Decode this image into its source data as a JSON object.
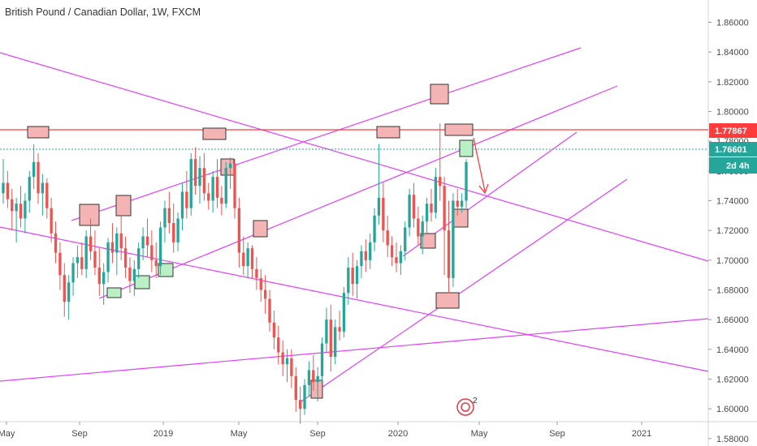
{
  "header": {
    "title": "British Pound / Canadian Dollar, 1W, FXCM"
  },
  "colors": {
    "up": "#26a69a",
    "down": "#ef5350",
    "trendline": "#e040fb",
    "resistance": "#ff3b3b",
    "current_price": "#26a69a",
    "box_red": "#f4b4b4",
    "box_green": "#b9f0c6",
    "axis_bg": "#ffffff"
  },
  "chart_data": {
    "type": "candlestick",
    "symbol": "GBPCAD",
    "timeframe": "1W",
    "ylim": [
      1.575,
      1.875
    ],
    "y_ticks": [
      "1.86000",
      "1.84000",
      "1.82000",
      "1.80000",
      "1.78000",
      "1.76000",
      "1.74000",
      "1.72000",
      "1.70000",
      "1.68000",
      "1.66000",
      "1.64000",
      "1.62000",
      "1.60000",
      "1.58000"
    ],
    "x_ticks": [
      "May",
      "Sep",
      "2019",
      "May",
      "Sep",
      "2020",
      "May",
      "Sep",
      "2021"
    ],
    "resistance_level": {
      "value": 1.77867,
      "label": "1.77867"
    },
    "current_price": {
      "value": 1.76601,
      "label": "1.76601",
      "countdown": "2d 4h"
    },
    "annotation_badge": "2",
    "candles": [
      [
        1.745,
        1.768,
        1.738,
        1.752
      ],
      [
        1.752,
        1.76,
        1.735,
        1.741
      ],
      [
        1.741,
        1.748,
        1.72,
        1.733
      ],
      [
        1.733,
        1.742,
        1.712,
        1.738
      ],
      [
        1.738,
        1.75,
        1.722,
        1.728
      ],
      [
        1.728,
        1.745,
        1.718,
        1.74
      ],
      [
        1.74,
        1.76,
        1.732,
        1.756
      ],
      [
        1.756,
        1.778,
        1.748,
        1.766
      ],
      [
        1.766,
        1.772,
        1.738,
        1.745
      ],
      [
        1.745,
        1.758,
        1.73,
        1.752
      ],
      [
        1.752,
        1.755,
        1.728,
        1.735
      ],
      [
        1.735,
        1.742,
        1.712,
        1.718
      ],
      [
        1.718,
        1.726,
        1.698,
        1.705
      ],
      [
        1.705,
        1.712,
        1.68,
        1.69
      ],
      [
        1.69,
        1.698,
        1.662,
        1.672
      ],
      [
        1.672,
        1.69,
        1.66,
        1.685
      ],
      [
        1.685,
        1.702,
        1.676,
        1.698
      ],
      [
        1.698,
        1.71,
        1.688,
        1.702
      ],
      [
        1.702,
        1.712,
        1.69,
        1.694
      ],
      [
        1.694,
        1.72,
        1.688,
        1.716
      ],
      [
        1.716,
        1.728,
        1.7,
        1.706
      ],
      [
        1.706,
        1.72,
        1.69,
        1.695
      ],
      [
        1.695,
        1.708,
        1.676,
        1.684
      ],
      [
        1.684,
        1.698,
        1.67,
        1.692
      ],
      [
        1.692,
        1.715,
        1.685,
        1.712
      ],
      [
        1.712,
        1.725,
        1.698,
        1.705
      ],
      [
        1.705,
        1.722,
        1.69,
        1.718
      ],
      [
        1.718,
        1.73,
        1.7,
        1.708
      ],
      [
        1.708,
        1.716,
        1.688,
        1.695
      ],
      [
        1.695,
        1.702,
        1.678,
        1.686
      ],
      [
        1.686,
        1.7,
        1.676,
        1.694
      ],
      [
        1.694,
        1.712,
        1.688,
        1.708
      ],
      [
        1.708,
        1.722,
        1.7,
        1.716
      ],
      [
        1.716,
        1.728,
        1.702,
        1.71
      ],
      [
        1.71,
        1.72,
        1.692,
        1.7
      ],
      [
        1.7,
        1.712,
        1.688,
        1.696
      ],
      [
        1.696,
        1.726,
        1.69,
        1.722
      ],
      [
        1.722,
        1.74,
        1.712,
        1.735
      ],
      [
        1.735,
        1.746,
        1.718,
        1.725
      ],
      [
        1.725,
        1.738,
        1.705,
        1.712
      ],
      [
        1.712,
        1.732,
        1.706,
        1.728
      ],
      [
        1.728,
        1.752,
        1.72,
        1.746
      ],
      [
        1.746,
        1.76,
        1.728,
        1.735
      ],
      [
        1.735,
        1.772,
        1.73,
        1.768
      ],
      [
        1.768,
        1.776,
        1.744,
        1.75
      ],
      [
        1.75,
        1.77,
        1.738,
        1.762
      ],
      [
        1.762,
        1.772,
        1.74,
        1.745
      ],
      [
        1.745,
        1.752,
        1.734,
        1.74
      ],
      [
        1.74,
        1.76,
        1.732,
        1.756
      ],
      [
        1.756,
        1.768,
        1.735,
        1.742
      ],
      [
        1.742,
        1.75,
        1.73,
        1.738
      ],
      [
        1.738,
        1.766,
        1.735,
        1.762
      ],
      [
        1.762,
        1.769,
        1.748,
        1.765
      ],
      [
        1.765,
        1.768,
        1.728,
        1.735
      ],
      [
        1.735,
        1.742,
        1.695,
        1.705
      ],
      [
        1.705,
        1.716,
        1.69,
        1.696
      ],
      [
        1.696,
        1.712,
        1.688,
        1.708
      ],
      [
        1.708,
        1.71,
        1.688,
        1.694
      ],
      [
        1.694,
        1.702,
        1.68,
        1.688
      ],
      [
        1.688,
        1.694,
        1.672,
        1.68
      ],
      [
        1.68,
        1.69,
        1.664,
        1.674
      ],
      [
        1.674,
        1.68,
        1.652,
        1.658
      ],
      [
        1.658,
        1.666,
        1.64,
        1.648
      ],
      [
        1.648,
        1.656,
        1.63,
        1.638
      ],
      [
        1.638,
        1.646,
        1.622,
        1.63
      ],
      [
        1.63,
        1.64,
        1.618,
        1.634
      ],
      [
        1.634,
        1.64,
        1.614,
        1.622
      ],
      [
        1.622,
        1.628,
        1.598,
        1.606
      ],
      [
        1.606,
        1.615,
        1.59,
        1.6
      ],
      [
        1.6,
        1.62,
        1.596,
        1.616
      ],
      [
        1.616,
        1.632,
        1.608,
        1.626
      ],
      [
        1.626,
        1.636,
        1.612,
        1.618
      ],
      [
        1.618,
        1.628,
        1.605,
        1.622
      ],
      [
        1.622,
        1.648,
        1.618,
        1.644
      ],
      [
        1.644,
        1.668,
        1.638,
        1.66
      ],
      [
        1.66,
        1.67,
        1.625,
        1.635
      ],
      [
        1.635,
        1.66,
        1.63,
        1.655
      ],
      [
        1.655,
        1.666,
        1.646,
        1.652
      ],
      [
        1.652,
        1.682,
        1.648,
        1.678
      ],
      [
        1.678,
        1.702,
        1.67,
        1.695
      ],
      [
        1.695,
        1.705,
        1.676,
        1.684
      ],
      [
        1.684,
        1.7,
        1.674,
        1.696
      ],
      [
        1.696,
        1.71,
        1.688,
        1.706
      ],
      [
        1.706,
        1.714,
        1.692,
        1.7
      ],
      [
        1.7,
        1.718,
        1.694,
        1.712
      ],
      [
        1.712,
        1.735,
        1.706,
        1.73
      ],
      [
        1.73,
        1.778,
        1.724,
        1.742
      ],
      [
        1.742,
        1.752,
        1.712,
        1.72
      ],
      [
        1.72,
        1.73,
        1.702,
        1.71
      ],
      [
        1.71,
        1.716,
        1.696,
        1.702
      ],
      [
        1.702,
        1.712,
        1.692,
        1.698
      ],
      [
        1.698,
        1.71,
        1.69,
        1.706
      ],
      [
        1.706,
        1.726,
        1.7,
        1.722
      ],
      [
        1.722,
        1.748,
        1.716,
        1.744
      ],
      [
        1.744,
        1.752,
        1.722,
        1.728
      ],
      [
        1.728,
        1.736,
        1.71,
        1.716
      ],
      [
        1.716,
        1.73,
        1.704,
        1.726
      ],
      [
        1.726,
        1.742,
        1.718,
        1.738
      ],
      [
        1.738,
        1.748,
        1.726,
        1.732
      ],
      [
        1.732,
        1.762,
        1.728,
        1.756
      ],
      [
        1.756,
        1.792,
        1.74,
        1.75
      ],
      [
        1.75,
        1.756,
        1.69,
        1.72
      ],
      [
        1.72,
        1.74,
        1.678,
        1.688
      ],
      [
        1.688,
        1.745,
        1.682,
        1.74
      ],
      [
        1.74,
        1.748,
        1.73,
        1.736
      ],
      [
        1.736,
        1.745,
        1.732,
        1.74
      ],
      [
        1.74,
        1.768,
        1.735,
        1.766
      ]
    ]
  }
}
